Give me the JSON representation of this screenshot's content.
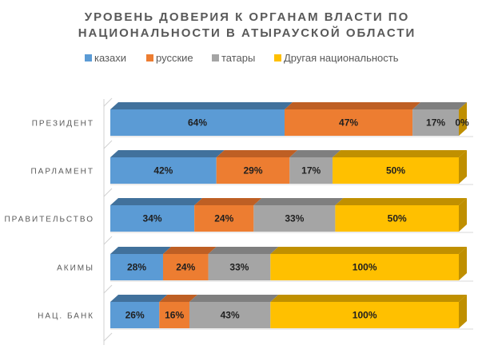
{
  "chart_data": {
    "type": "bar",
    "orientation": "horizontal",
    "stacking": "percent",
    "style": "3d",
    "title": [
      "УРОВЕНЬ ДОВЕРИЯ К ОРГАНАМ ВЛАСТИ ПО",
      "НАЦИОНАЛЬНОСТИ В АТЫРАУСКОЙ ОБЛАСТИ"
    ],
    "legend_position": "top",
    "categories": [
      "ПРЕЗИДЕНТ",
      "ПАРЛАМЕНТ",
      "ПРАВИТЕЛЬСТВО",
      "АКИМЫ",
      "НАЦ. БАНК"
    ],
    "series": [
      {
        "name": "казахи",
        "color": "#5B9BD5",
        "top": "#41719C",
        "side": "#41719C",
        "values": [
          64,
          42,
          34,
          28,
          26
        ]
      },
      {
        "name": "русские",
        "color": "#ED7D31",
        "top": "#BE5F24",
        "side": "#BE5F24",
        "values": [
          47,
          29,
          24,
          24,
          16
        ]
      },
      {
        "name": "татары",
        "color": "#A5A5A5",
        "top": "#7F7F7F",
        "side": "#7F7F7F",
        "values": [
          17,
          17,
          33,
          33,
          43
        ]
      },
      {
        "name": "Другая национальность",
        "color": "#FFC000",
        "top": "#C09000",
        "side": "#BF8F00",
        "values": [
          0,
          50,
          50,
          100,
          100
        ]
      }
    ],
    "value_suffix": "%"
  }
}
